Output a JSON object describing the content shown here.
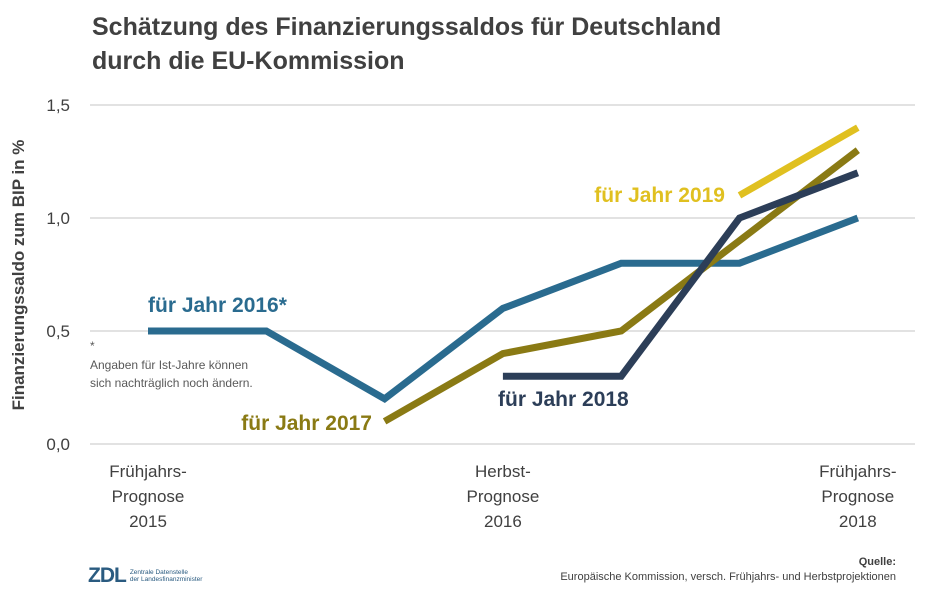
{
  "title_line1": "Schätzung des Finanzierungssaldos für Deutschland",
  "title_line2": "durch die EU-Kommission",
  "colors": {
    "s2016": "#2a6b8f",
    "s2017": "#8a7a14",
    "s2018": "#2c3e58",
    "s2019": "#e0c020",
    "grid": "#d9d9d9"
  },
  "chart_data": {
    "type": "line",
    "ylabel": "Finanzierungssaldo zum BIP in %",
    "ylim": [
      0,
      1.5
    ],
    "yticks": [
      "0,0",
      "0,5",
      "1,0",
      "1,5"
    ],
    "ytick_values": [
      0,
      0.5,
      1.0,
      1.5
    ],
    "x": [
      0,
      1,
      2,
      3,
      4,
      5,
      6
    ],
    "xtick_labels": [
      {
        "x": 0,
        "lines": [
          "Frühjahrs-",
          "Prognose",
          "2015"
        ]
      },
      {
        "x": 3,
        "lines": [
          "Herbst-",
          "Prognose",
          "2016"
        ]
      },
      {
        "x": 6,
        "lines": [
          "Frühjahrs-",
          "Prognose",
          "2018"
        ]
      }
    ],
    "series": [
      {
        "name": "für Jahr 2016*",
        "key": "s2016",
        "x": [
          0,
          1,
          2,
          3,
          4,
          5,
          6
        ],
        "values": [
          0.5,
          0.5,
          0.2,
          0.6,
          0.8,
          0.8,
          1.0
        ]
      },
      {
        "name": "für Jahr 2017",
        "key": "s2017",
        "x": [
          2,
          3,
          4,
          5,
          6
        ],
        "values": [
          0.1,
          0.4,
          0.5,
          0.9,
          1.3
        ]
      },
      {
        "name": "für Jahr 2018",
        "key": "s2018",
        "x": [
          3,
          4,
          5,
          6
        ],
        "values": [
          0.3,
          0.3,
          1.0,
          1.2
        ]
      },
      {
        "name": "für Jahr 2019",
        "key": "s2019",
        "x": [
          5,
          6
        ],
        "values": [
          1.1,
          1.4
        ]
      }
    ],
    "grid": true
  },
  "note_star": "*",
  "note_line1": "Angaben für Ist-Jahre können",
  "note_line2": "sich nachträglich noch ändern.",
  "source_label": "Quelle:",
  "source_text": "Europäische Kommission, versch. Frühjahrs- und Herbstprojektionen",
  "logo_mark": "ZDL",
  "logo_line1": "Zentrale Datenstelle",
  "logo_line2": "der Landesfinanzminister"
}
